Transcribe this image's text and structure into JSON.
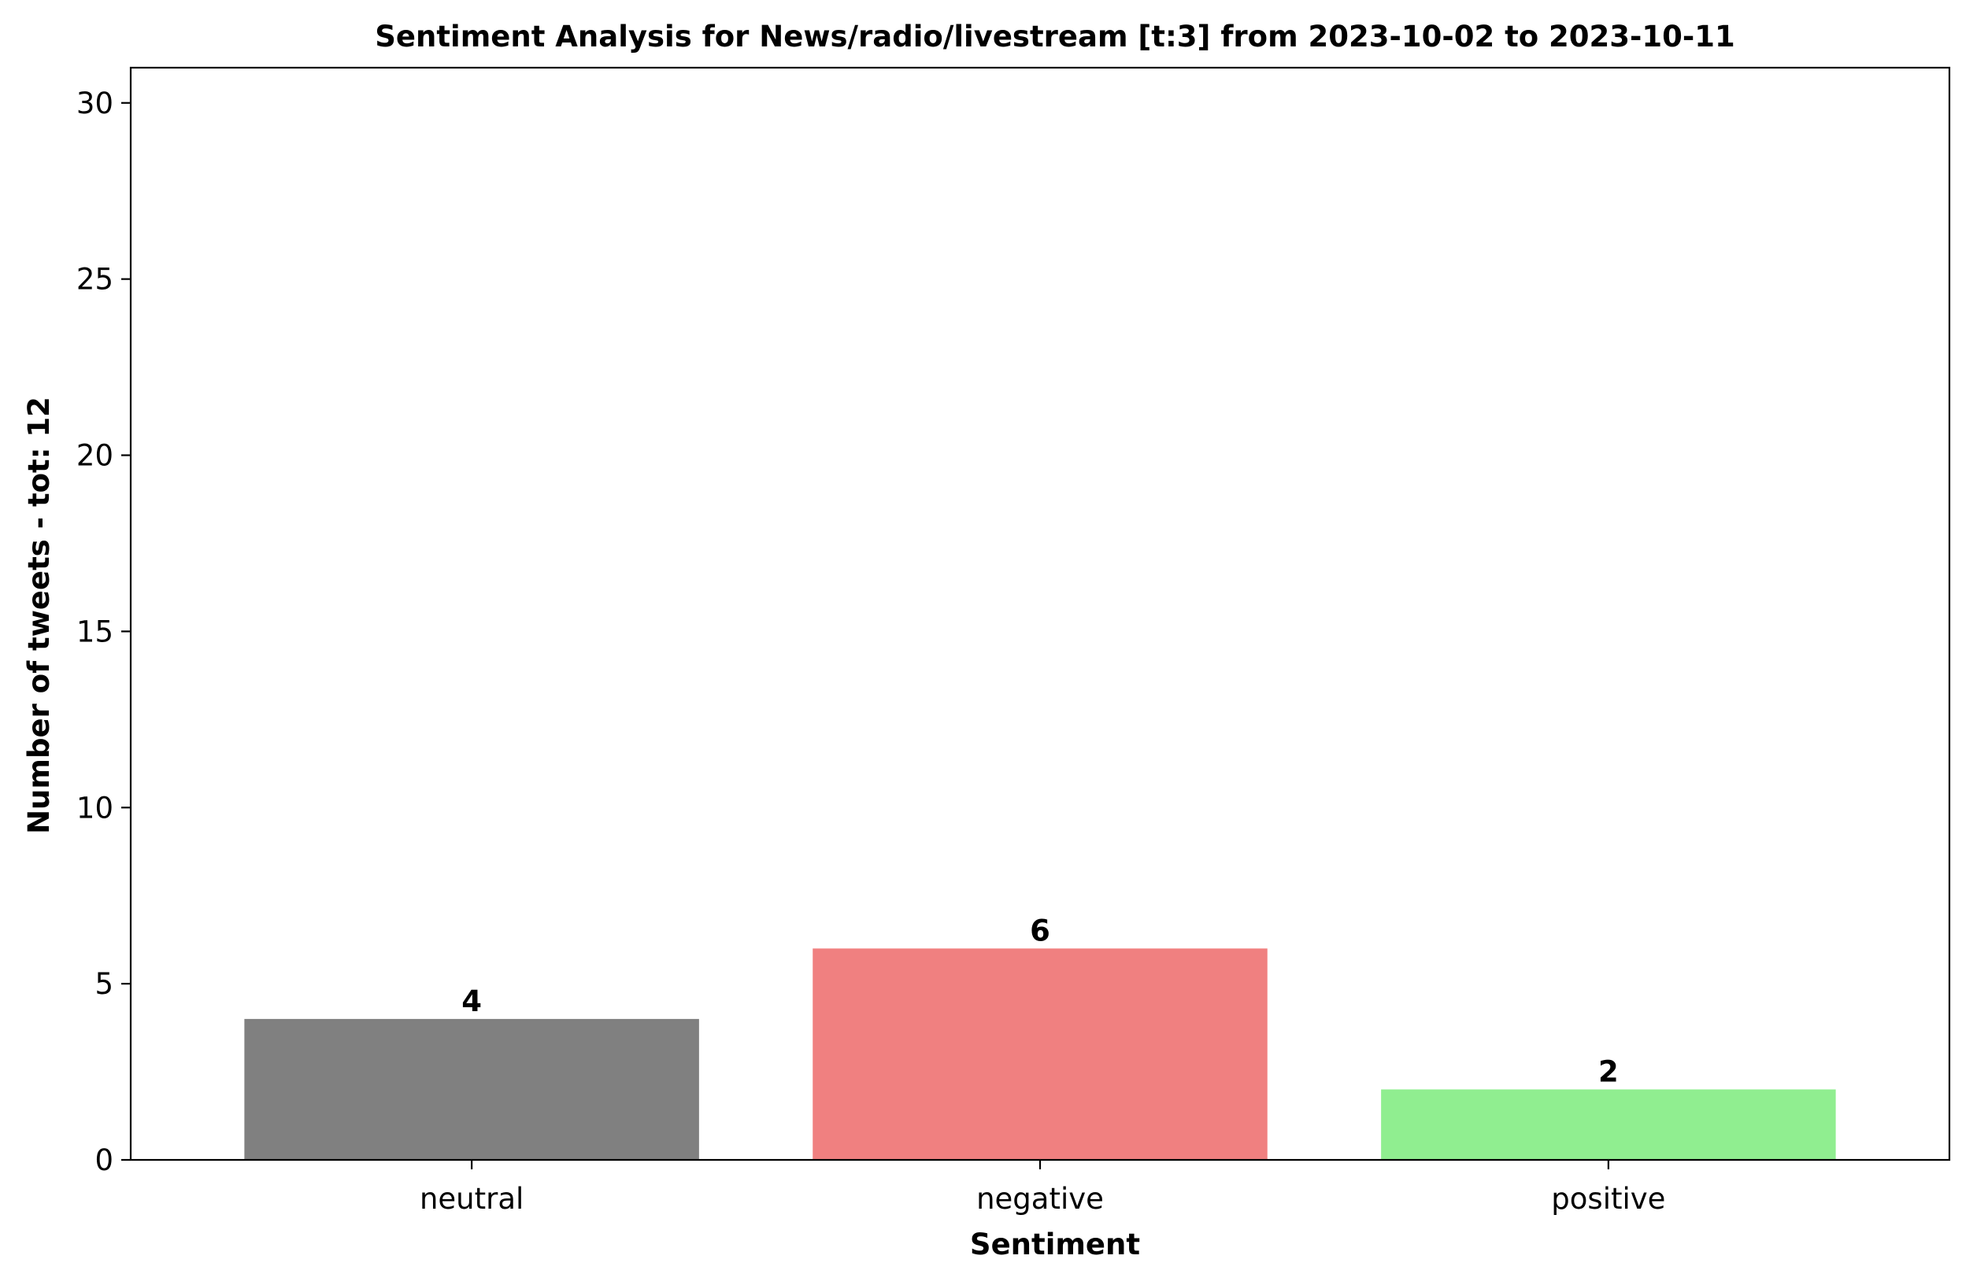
{
  "chart_data": {
    "type": "bar",
    "title": "Sentiment Analysis for News/radio/livestream [t:3] from 2023-10-02 to 2023-10-11",
    "xlabel": "Sentiment",
    "ylabel": "Number of tweets - tot: 12",
    "categories": [
      "neutral",
      "negative",
      "positive"
    ],
    "values": [
      4,
      6,
      2
    ],
    "colors": [
      "#808080",
      "#f08080",
      "#90ee90"
    ],
    "ylim": [
      0,
      31
    ],
    "yticks": [
      0,
      5,
      10,
      15,
      20,
      25,
      30
    ],
    "grid": false,
    "legend": "none"
  }
}
